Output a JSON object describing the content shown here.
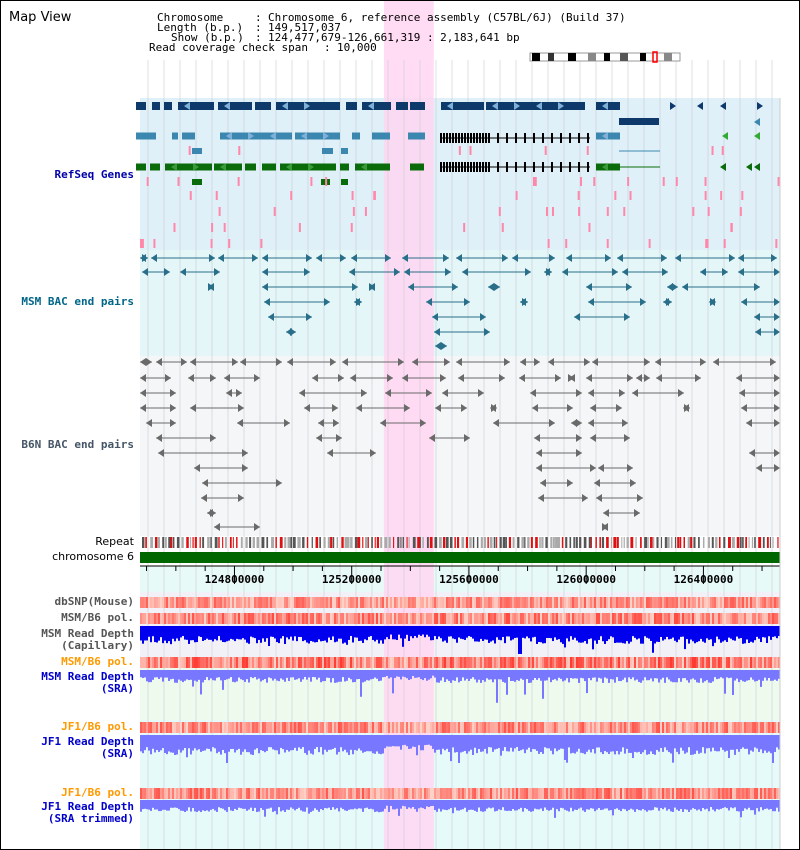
{
  "window": {
    "title": "Map View"
  },
  "header": {
    "chromosome_label": "Chromosome",
    "chromosome_value": "Chromosome 6, reference assembly (C57BL/6J) (Build 37)",
    "length_label": "Length (b.p.)",
    "length_value": "149,517,037",
    "show_label": "Show (b.p.)",
    "show_value": "124,477,679-126,661,319 : 2,183,641 bp",
    "coverage_label": "Read coverage check span",
    "coverage_value": "10,000"
  },
  "tracks": {
    "refseq": "RefSeq Genes",
    "msm_bac": "MSM BAC end pairs",
    "b6n_bac": "B6N BAC end pairs",
    "repeat": "Repeat",
    "chromosome": "chromosome 6",
    "dbsnp": "dbSNP(Mouse)",
    "msm_b6_pol_1": "MSM/B6 pol.",
    "msm_depth_cap_1": "MSM Read Depth",
    "msm_depth_cap_2": "(Capillary)",
    "msm_b6_pol_2": "MSM/B6 pol.",
    "msm_depth_sra_1": "MSM Read Depth",
    "msm_depth_sra_2": "(SRA)",
    "jf1_b6_pol_1": "JF1/B6 pol.",
    "jf1_depth_sra_1": "JF1 Read Depth",
    "jf1_depth_sra_2": "(SRA)",
    "jf1_b6_pol_2": "JF1/B6 pol.",
    "jf1_depth_trim_1": "JF1 Read Depth",
    "jf1_depth_trim_2": "(SRA trimmed)"
  },
  "axis": {
    "ticks": [
      {
        "pos": 124800000,
        "label": "124800000"
      },
      {
        "pos": 125200000,
        "label": "125200000"
      },
      {
        "pos": 125600000,
        "label": "125600000"
      },
      {
        "pos": 126000000,
        "label": "126000000"
      },
      {
        "pos": 126400000,
        "label": "126400000"
      }
    ],
    "start": 124477679,
    "end": 126661319
  },
  "highlight": {
    "start": 125310000,
    "end": 125480000
  },
  "colors": {
    "refseq_label": "#0000aa",
    "msm_label": "#006688",
    "b6n_label": "#445566",
    "pol_orange": "#ff9900",
    "sra_label": "#0000cc",
    "refseq_bg": "#dff0f8",
    "msm_bg": "#e4f6f8",
    "highlight": "#ffd6f2",
    "gene_navy": "#0e3a6b",
    "gene_steel": "#3b87b0",
    "gene_green": "#0a6b0a",
    "chrom_bar": "#006600",
    "depth_blue": "#0000ee",
    "depth_light": "#7777ff"
  }
}
